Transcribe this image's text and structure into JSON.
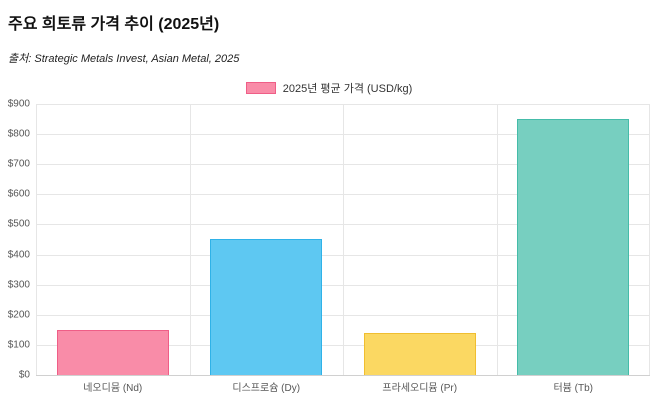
{
  "title": "주요 희토류 가격 추이 (2025년)",
  "source": "출처: Strategic Metals Invest, Asian Metal, 2025",
  "legend_label": "2025년 평균 가격 (USD/kg)",
  "chart_data": {
    "type": "bar",
    "title": "주요 희토류 가격 추이 (2025년)",
    "subtitle": "출처: Strategic Metals Invest, Asian Metal, 2025",
    "legend": "2025년 평균 가격 (USD/kg)",
    "legend_position": "top",
    "categories": [
      "네오디뮴 (Nd)",
      "디스프로슘 (Dy)",
      "프라세오디뮴 (Pr)",
      "터븀 (Tb)"
    ],
    "values": [
      148,
      452,
      140,
      850
    ],
    "unit": "USD/kg",
    "xlabel": "",
    "ylabel": "",
    "ylim": [
      0,
      900
    ],
    "ytick_step": 100,
    "ytick_prefix": "$",
    "grid": true,
    "colors": [
      "#f98ca8",
      "#5ec8f2",
      "#fbd862",
      "#77cfc0"
    ],
    "border_colors": [
      "#ef5e87",
      "#2fb2e8",
      "#f0be30",
      "#45bca9"
    ]
  }
}
